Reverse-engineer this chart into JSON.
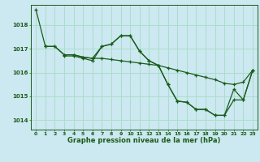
{
  "background_color": "#cce8f0",
  "grid_color": "#aaddcc",
  "line_color": "#1a5c1a",
  "title": "Graphe pression niveau de la mer (hPa)",
  "xlim": [
    -0.5,
    23.5
  ],
  "ylim": [
    1013.6,
    1018.85
  ],
  "yticks": [
    1014,
    1015,
    1016,
    1017,
    1018
  ],
  "xticks": [
    0,
    1,
    2,
    3,
    4,
    5,
    6,
    7,
    8,
    9,
    10,
    11,
    12,
    13,
    14,
    15,
    16,
    17,
    18,
    19,
    20,
    21,
    22,
    23
  ],
  "line1_x": [
    0,
    1,
    2,
    3,
    4,
    5,
    6,
    7,
    8,
    9,
    10,
    11,
    12,
    13,
    14,
    15,
    16,
    17,
    18,
    19,
    20,
    21,
    22,
    23
  ],
  "line1_y": [
    1018.65,
    1017.1,
    1017.1,
    1016.75,
    1016.75,
    1016.65,
    1016.6,
    1017.1,
    1017.2,
    1017.55,
    1017.55,
    1016.9,
    1016.5,
    1016.3,
    1015.5,
    1014.8,
    1014.75,
    1014.45,
    1014.45,
    1014.2,
    1014.2,
    1015.3,
    1014.85,
    1016.1
  ],
  "line2_x": [
    1,
    2,
    3,
    4,
    5,
    6,
    7,
    8,
    9,
    10,
    11,
    12,
    13,
    14,
    15,
    16,
    17,
    18,
    19,
    20,
    21,
    22,
    23
  ],
  "line2_y": [
    1017.1,
    1017.1,
    1016.75,
    1016.75,
    1016.65,
    1016.6,
    1016.6,
    1016.55,
    1016.5,
    1016.45,
    1016.4,
    1016.35,
    1016.3,
    1016.2,
    1016.1,
    1016.0,
    1015.9,
    1015.8,
    1015.7,
    1015.55,
    1015.5,
    1015.6,
    1016.1
  ],
  "line3_x": [
    3,
    4,
    5,
    6,
    7,
    8,
    9,
    10,
    11,
    12,
    13,
    14,
    15,
    16,
    17,
    18,
    19,
    20,
    21,
    22,
    23
  ],
  "line3_y": [
    1016.7,
    1016.7,
    1016.6,
    1016.5,
    1017.1,
    1017.2,
    1017.55,
    1017.55,
    1016.9,
    1016.5,
    1016.3,
    1015.5,
    1014.8,
    1014.75,
    1014.45,
    1014.45,
    1014.2,
    1014.2,
    1014.85,
    1014.85,
    1016.1
  ]
}
